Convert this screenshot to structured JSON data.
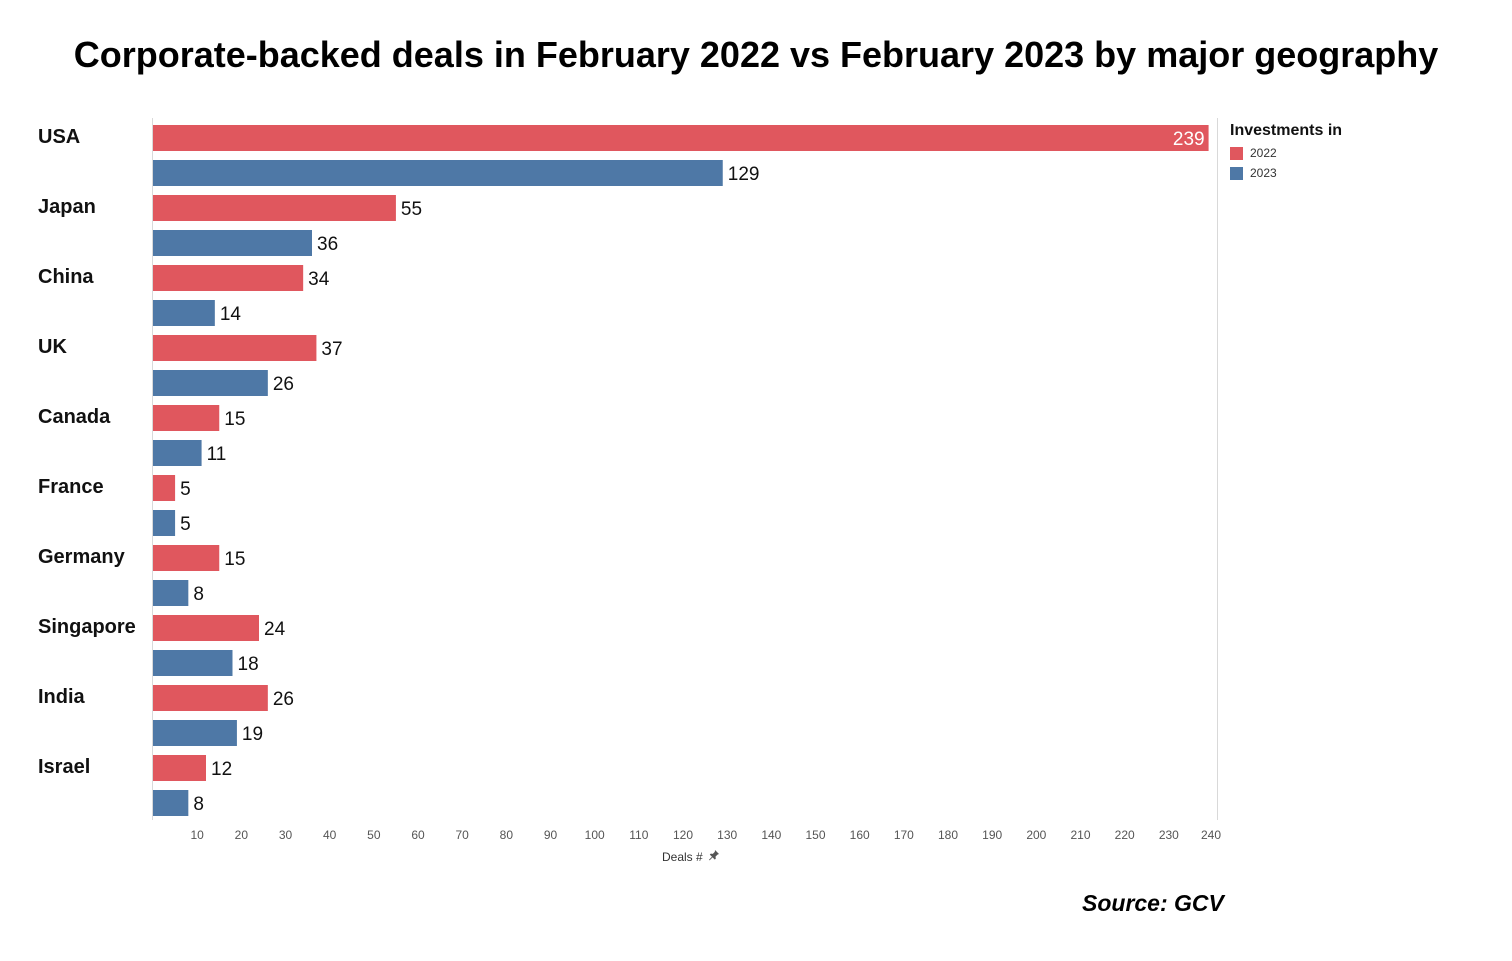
{
  "title": "Corporate-backed deals in February 2022 vs February 2023 by major geography",
  "source": "Source: GCV",
  "colors": {
    "s2022": "#e0575e",
    "s2023": "#4e78a6"
  },
  "legend": {
    "title": "Investments in",
    "items": [
      "2022",
      "2023"
    ]
  },
  "axis": {
    "xlabel": "Deals #",
    "pin_icon": "pin-icon"
  },
  "chart_data": {
    "type": "bar",
    "orientation": "horizontal",
    "title": "Corporate-backed deals in February 2022 vs February 2023 by major geography",
    "categories": [
      "USA",
      "Japan",
      "China",
      "UK",
      "Canada",
      "France",
      "Germany",
      "Singapore",
      "India",
      "Israel"
    ],
    "series": [
      {
        "name": "2022",
        "values": [
          239,
          55,
          34,
          37,
          15,
          5,
          15,
          24,
          26,
          12
        ]
      },
      {
        "name": "2023",
        "values": [
          129,
          36,
          14,
          26,
          11,
          5,
          8,
          18,
          19,
          8
        ]
      }
    ],
    "xlabel": "Deals #",
    "ylabel": "",
    "xlim": [
      0,
      240
    ],
    "xticks": [
      10,
      20,
      30,
      40,
      50,
      60,
      70,
      80,
      90,
      100,
      110,
      120,
      130,
      140,
      150,
      160,
      170,
      180,
      190,
      200,
      210,
      220,
      230,
      240
    ],
    "legend_position": "top-right",
    "grid": false
  }
}
